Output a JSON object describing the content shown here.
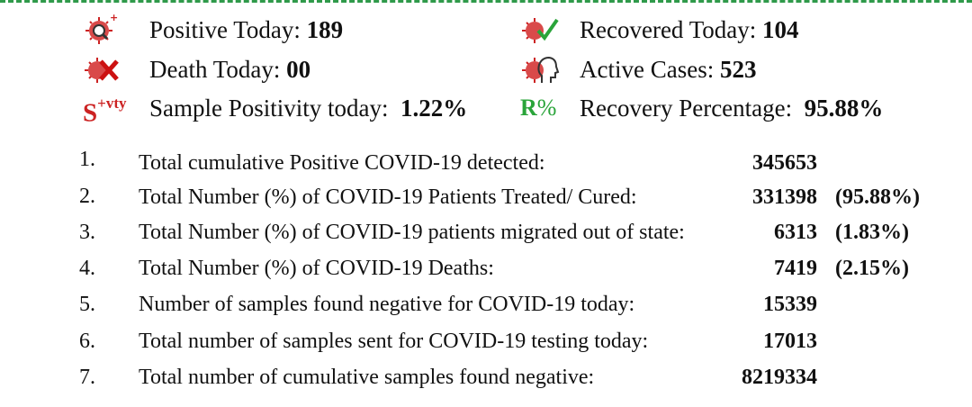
{
  "summary": {
    "positive_today": {
      "label": "Positive Today:",
      "value": "189",
      "icon": "virus-magnifier-icon"
    },
    "recovered_today": {
      "label": "Recovered Today:",
      "value": "104",
      "icon": "virus-check-icon"
    },
    "death_today": {
      "label": "Death Today:",
      "value": "00",
      "icon": "virus-cross-icon"
    },
    "active_cases": {
      "label": "Active Cases:",
      "value": "523",
      "icon": "virus-head-icon"
    },
    "sample_positivity": {
      "label": "Sample Positivity today:",
      "value": "1.22%",
      "icon_text": "S",
      "icon_sup": "+vty"
    },
    "recovery_percentage": {
      "label": "Recovery Percentage:",
      "value": "95.88%",
      "icon_text": "R",
      "icon_suffix": "%"
    }
  },
  "colors": {
    "accent_red": "#cc2222",
    "accent_green": "#2aa43a",
    "dashed_border": "#2f9a4a"
  },
  "rows": [
    {
      "num": "1.",
      "label": "Total cumulative Positive COVID-19 detected:",
      "value": "345653",
      "pct": ""
    },
    {
      "num": "2.",
      "label": "Total Number (%) of COVID-19 Patients Treated/ Cured:",
      "value": "331398",
      "pct": "(95.88%)"
    },
    {
      "num": "3.",
      "label": "Total Number (%) of COVID-19 patients migrated out of state:",
      "value": "6313",
      "pct": "(1.83%)"
    },
    {
      "num": "4.",
      "label": "Total Number (%) of COVID-19 Deaths:",
      "value": "7419",
      "pct": "(2.15%)"
    },
    {
      "num": "5.",
      "label": "Number of samples found negative for COVID-19 today:",
      "value": "15339",
      "pct": ""
    },
    {
      "num": "6.",
      "label": "Total number of samples sent for COVID-19 testing today:",
      "value": "17013",
      "pct": ""
    },
    {
      "num": "7.",
      "label": "Total number of cumulative samples found negative:",
      "value": "8219334",
      "pct": ""
    }
  ]
}
